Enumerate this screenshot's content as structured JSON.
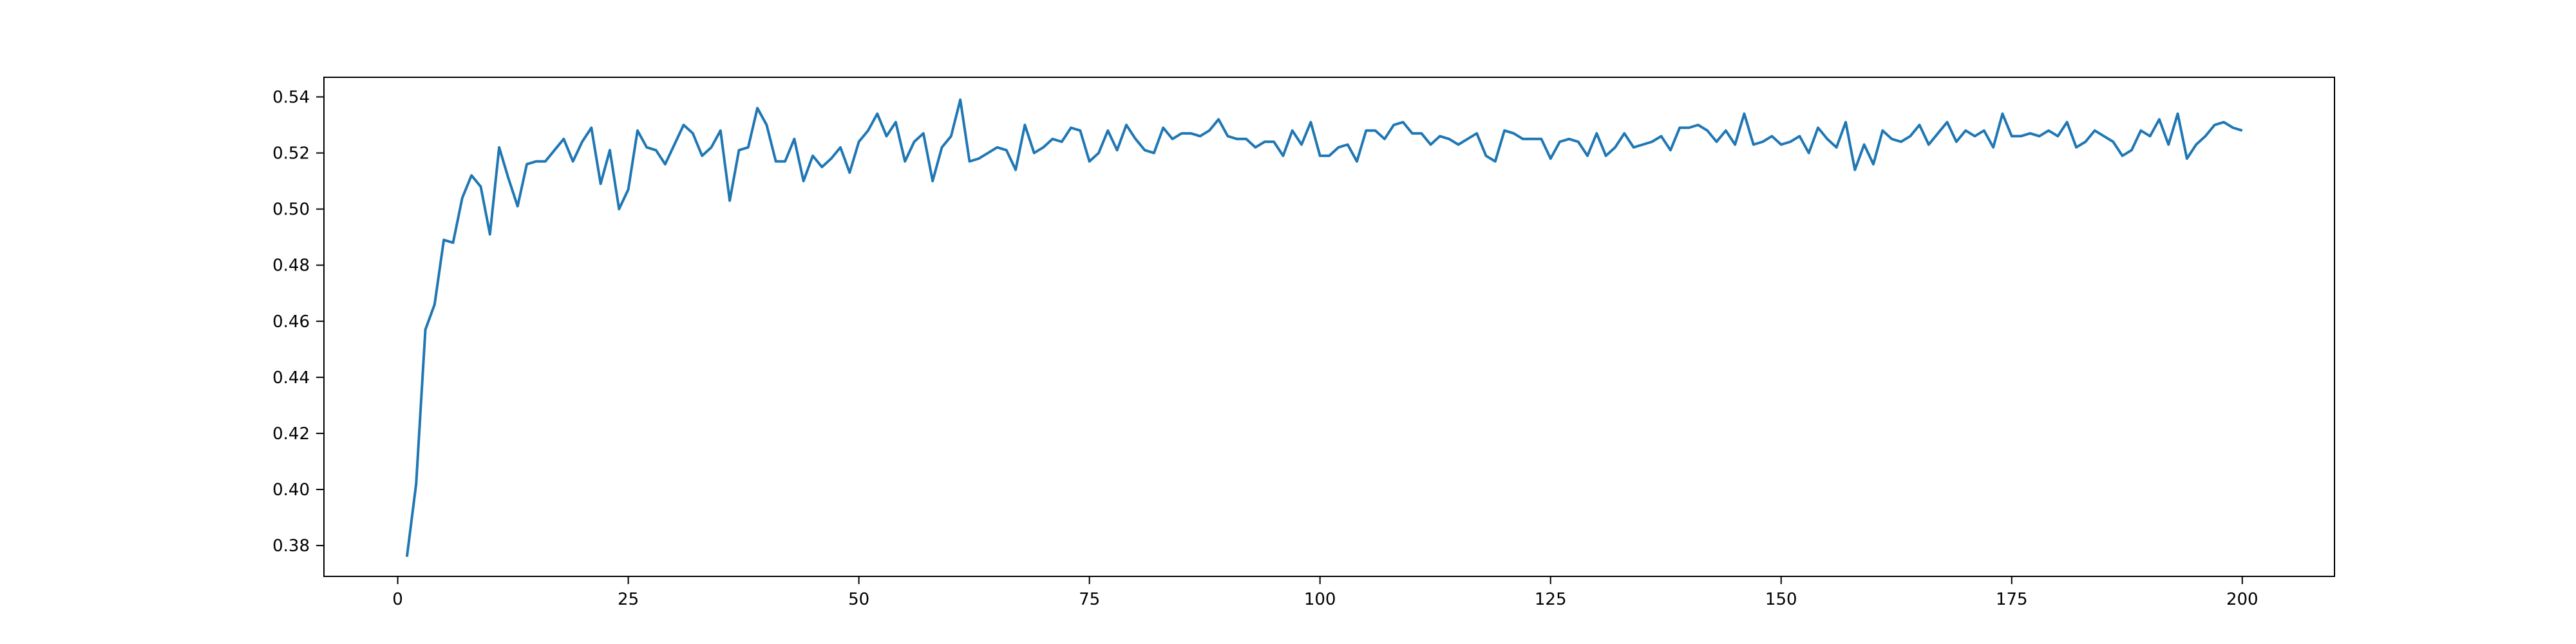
{
  "chart_data": {
    "type": "line",
    "title": "",
    "xlabel": "",
    "ylabel": "",
    "xlim": [
      -8,
      210
    ],
    "ylim": [
      0.369,
      0.547
    ],
    "grid": false,
    "legend": "none",
    "line_color": "#1f77b4",
    "x_ticks": [
      0,
      25,
      50,
      75,
      100,
      125,
      150,
      175,
      200
    ],
    "x_tick_labels": [
      "0",
      "25",
      "50",
      "75",
      "100",
      "125",
      "150",
      "175",
      "200"
    ],
    "y_ticks": [
      0.38,
      0.4,
      0.42,
      0.44,
      0.46,
      0.48,
      0.5,
      0.52,
      0.54
    ],
    "y_tick_labels": [
      "0.38",
      "0.40",
      "0.42",
      "0.44",
      "0.46",
      "0.48",
      "0.50",
      "0.52",
      "0.54"
    ],
    "x_start": 1,
    "x_step": 1,
    "series": [
      {
        "values": [
          0.376,
          0.402,
          0.457,
          0.466,
          0.489,
          0.488,
          0.504,
          0.512,
          0.508,
          0.491,
          0.522,
          0.511,
          0.501,
          0.516,
          0.517,
          0.517,
          0.521,
          0.525,
          0.517,
          0.524,
          0.529,
          0.509,
          0.521,
          0.5,
          0.507,
          0.528,
          0.522,
          0.521,
          0.516,
          0.523,
          0.53,
          0.527,
          0.519,
          0.522,
          0.528,
          0.503,
          0.521,
          0.522,
          0.536,
          0.53,
          0.517,
          0.517,
          0.525,
          0.51,
          0.519,
          0.515,
          0.518,
          0.522,
          0.513,
          0.524,
          0.528,
          0.534,
          0.526,
          0.531,
          0.517,
          0.524,
          0.527,
          0.51,
          0.522,
          0.526,
          0.539,
          0.517,
          0.518,
          0.52,
          0.522,
          0.521,
          0.514,
          0.53,
          0.52,
          0.522,
          0.525,
          0.524,
          0.529,
          0.528,
          0.517,
          0.52,
          0.528,
          0.521,
          0.53,
          0.525,
          0.521,
          0.52,
          0.529,
          0.525,
          0.527,
          0.527,
          0.526,
          0.528,
          0.532,
          0.526,
          0.525,
          0.525,
          0.522,
          0.524,
          0.524,
          0.519,
          0.528,
          0.523,
          0.531,
          0.519,
          0.519,
          0.522,
          0.523,
          0.517,
          0.528,
          0.528,
          0.525,
          0.53,
          0.531,
          0.527,
          0.527,
          0.523,
          0.526,
          0.525,
          0.523,
          0.525,
          0.527,
          0.519,
          0.517,
          0.528,
          0.527,
          0.525,
          0.525,
          0.525,
          0.518,
          0.524,
          0.525,
          0.524,
          0.519,
          0.527,
          0.519,
          0.522,
          0.527,
          0.522,
          0.523,
          0.524,
          0.526,
          0.521,
          0.529,
          0.529,
          0.53,
          0.528,
          0.524,
          0.528,
          0.523,
          0.534,
          0.523,
          0.524,
          0.526,
          0.523,
          0.524,
          0.526,
          0.52,
          0.529,
          0.525,
          0.522,
          0.531,
          0.514,
          0.523,
          0.516,
          0.528,
          0.525,
          0.524,
          0.526,
          0.53,
          0.523,
          0.527,
          0.531,
          0.524,
          0.528,
          0.526,
          0.528,
          0.522,
          0.534,
          0.526,
          0.526,
          0.527,
          0.526,
          0.528,
          0.526,
          0.531,
          0.522,
          0.524,
          0.528,
          0.526,
          0.524,
          0.519,
          0.521,
          0.528,
          0.526,
          0.532,
          0.523,
          0.534,
          0.518,
          0.523,
          0.526,
          0.53,
          0.531,
          0.529,
          0.528
        ]
      }
    ]
  }
}
